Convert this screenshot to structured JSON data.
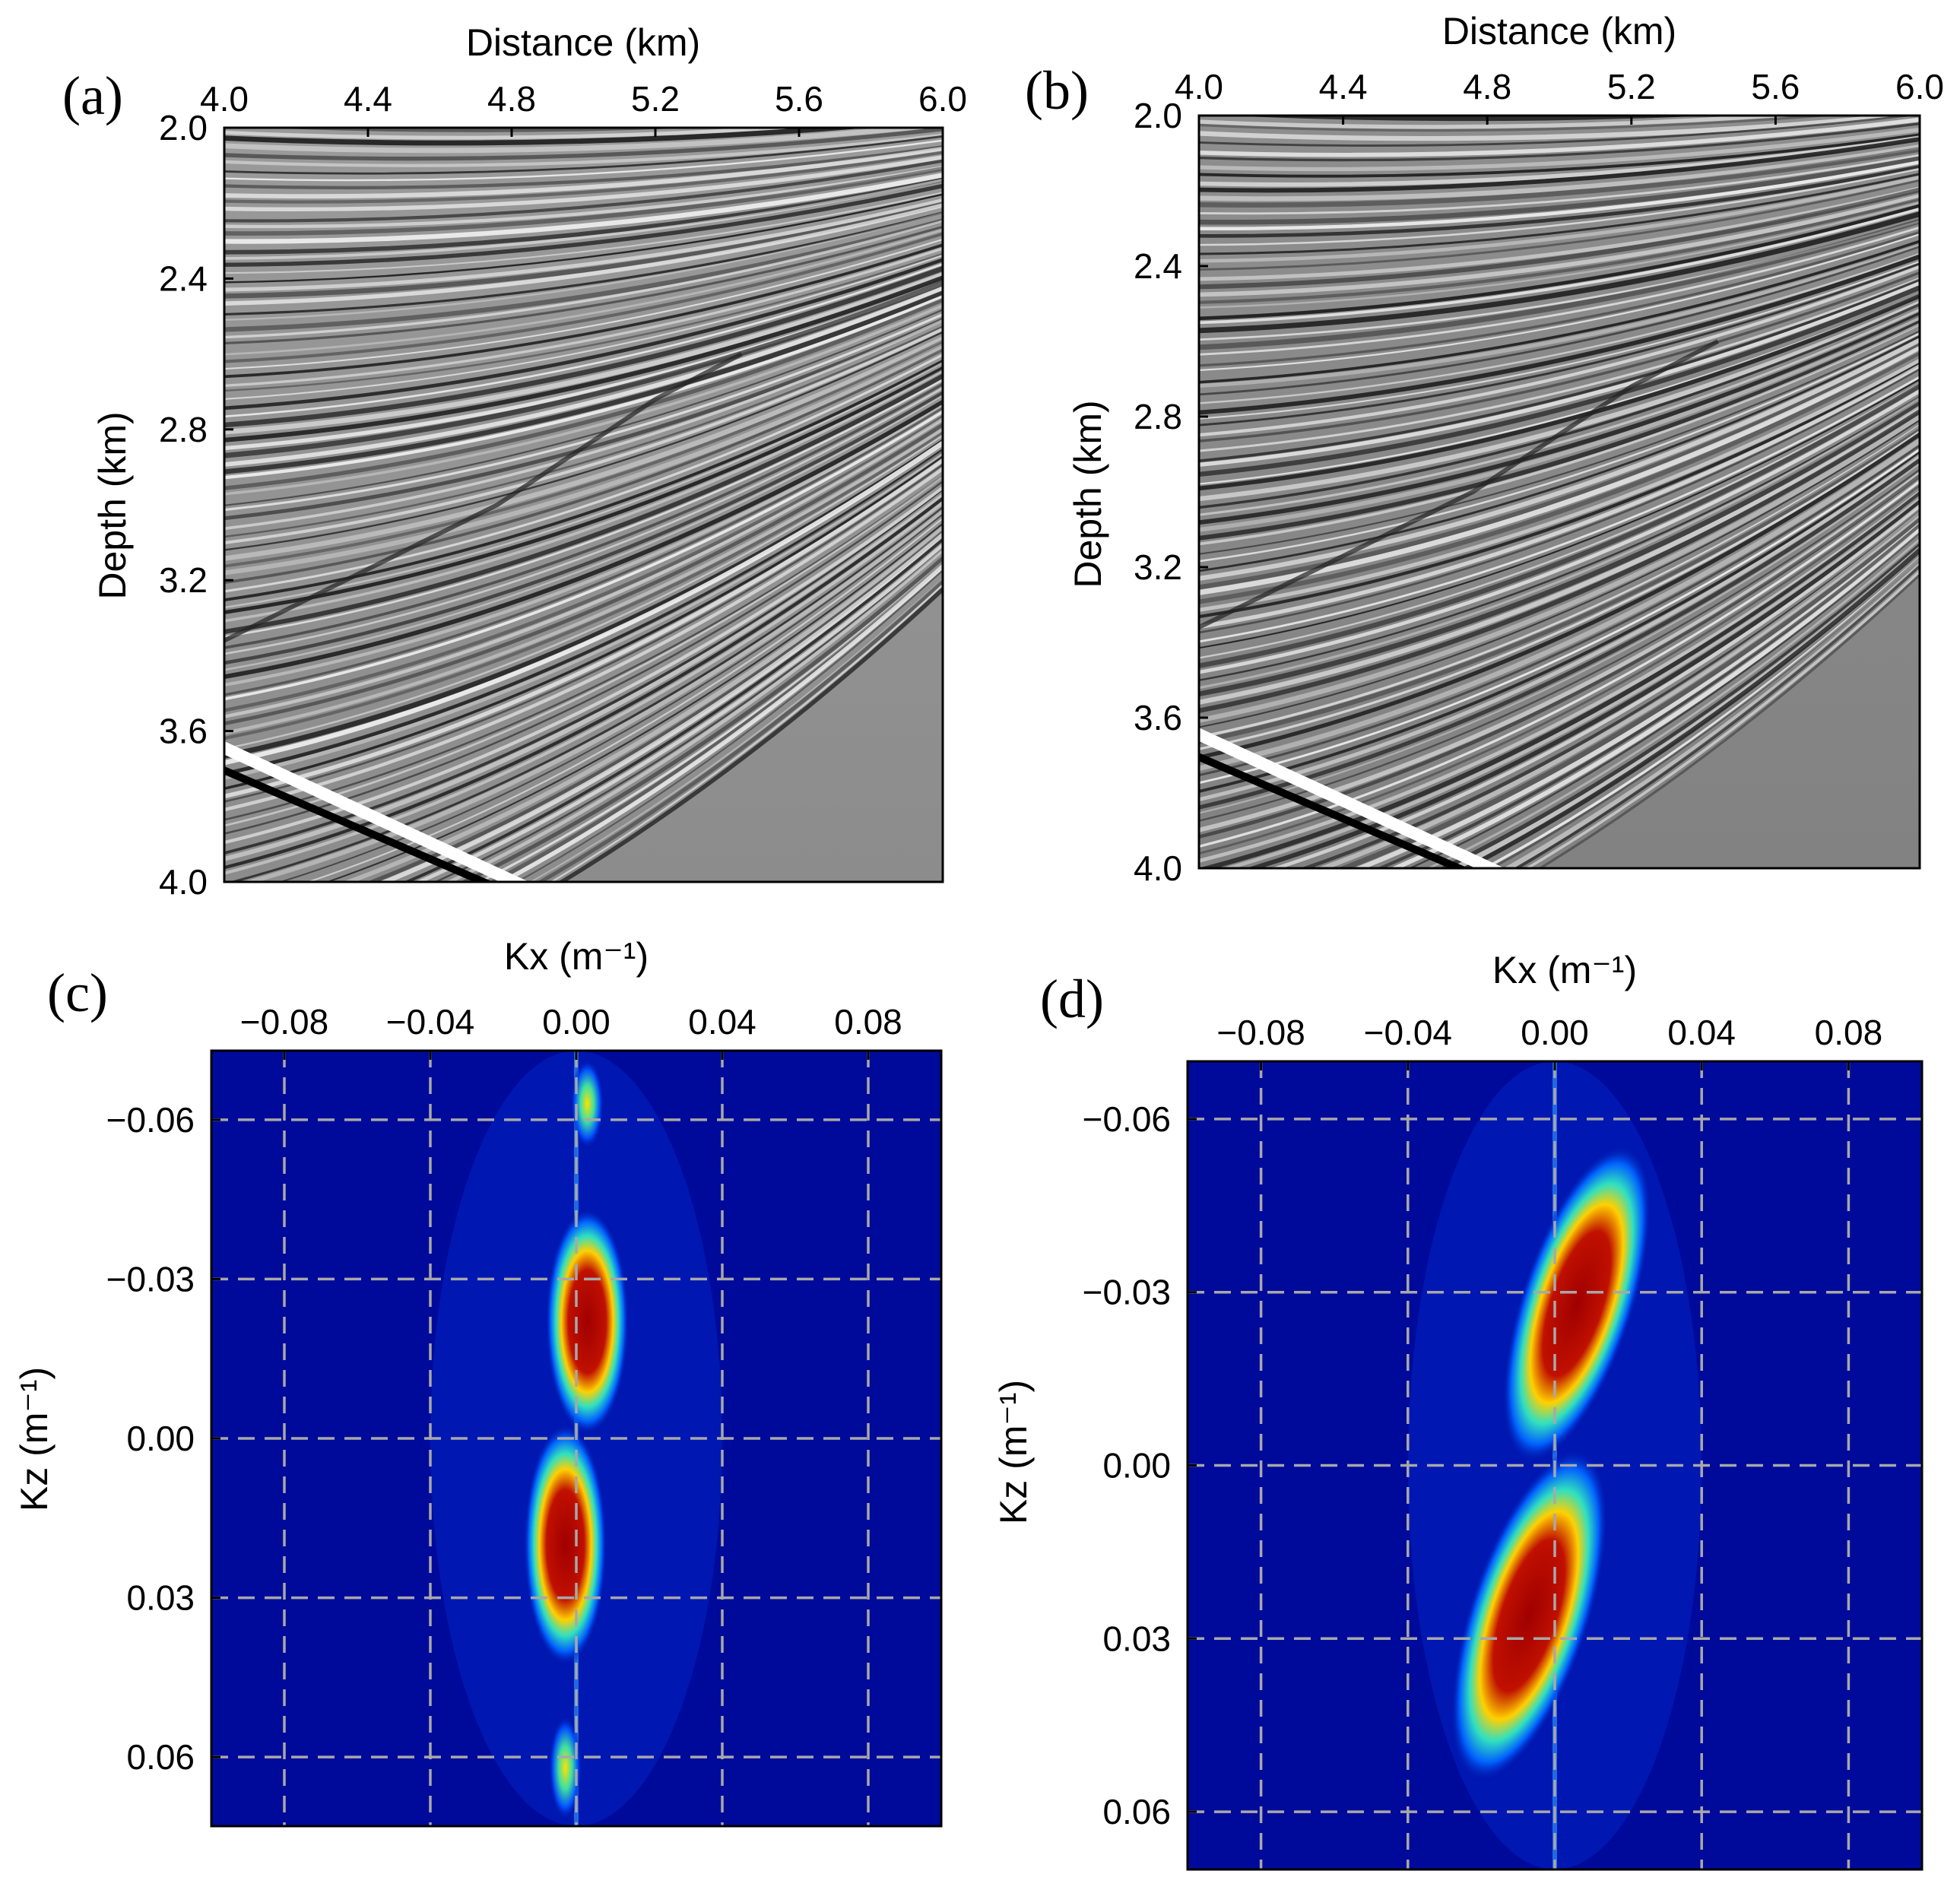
{
  "chart_data": [
    {
      "panel_label": "(a)",
      "type": "heatmap",
      "xlabel": "Distance (km)",
      "ylabel": "Depth (km)",
      "xlim": [
        4.0,
        6.0
      ],
      "ylim": [
        2.0,
        4.0
      ],
      "x_ticks": [
        "4.0",
        "4.4",
        "4.8",
        "5.2",
        "5.6",
        "6.0"
      ],
      "y_ticks": [
        "2.0",
        "2.4",
        "2.8",
        "3.2",
        "3.6",
        "4.0"
      ],
      "colormap": "gray"
    },
    {
      "panel_label": "(b)",
      "type": "heatmap",
      "xlabel": "Distance (km)",
      "ylabel": "Depth (km)",
      "xlim": [
        4.0,
        6.0
      ],
      "ylim": [
        2.0,
        4.0
      ],
      "x_ticks": [
        "4.0",
        "4.4",
        "4.8",
        "5.2",
        "5.6",
        "6.0"
      ],
      "y_ticks": [
        "2.0",
        "2.4",
        "2.8",
        "3.2",
        "3.6",
        "4.0"
      ],
      "colormap": "gray"
    },
    {
      "panel_label": "(c)",
      "type": "heatmap",
      "xlabel": "Kx (m⁻¹)",
      "ylabel": "Kz (m⁻¹)",
      "xlim": [
        -0.1,
        0.1
      ],
      "ylim": [
        -0.073,
        0.073
      ],
      "x_ticks": [
        "−0.08",
        "−0.04",
        "0.00",
        "0.04",
        "0.08"
      ],
      "y_ticks": [
        "−0.06",
        "−0.03",
        "0.00",
        "0.03",
        "0.06"
      ],
      "grid": true,
      "colormap": "jet"
    },
    {
      "panel_label": "(d)",
      "type": "heatmap",
      "xlabel": "Kx (m⁻¹)",
      "ylabel": "Kz (m⁻¹)",
      "xlim": [
        -0.1,
        0.1
      ],
      "ylim": [
        -0.07,
        0.07
      ],
      "x_ticks": [
        "−0.08",
        "−0.04",
        "0.00",
        "0.04",
        "0.08"
      ],
      "y_ticks": [
        "−0.06",
        "−0.03",
        "0.00",
        "0.03",
        "0.06"
      ],
      "grid": true,
      "colormap": "jet"
    }
  ]
}
